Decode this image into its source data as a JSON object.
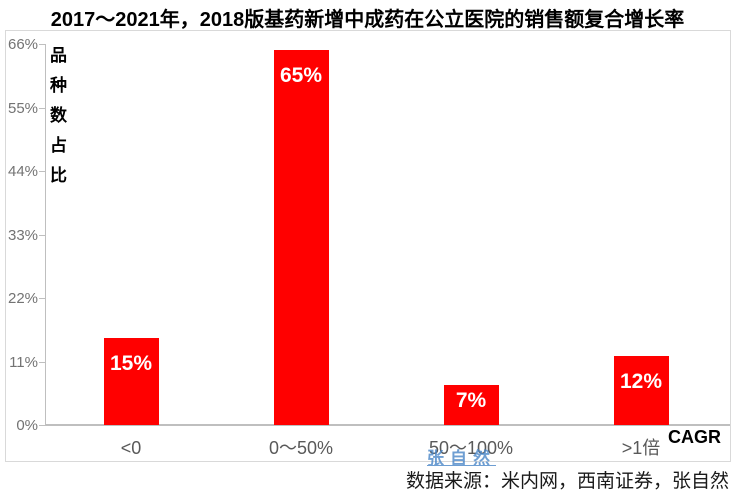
{
  "title": "2017～2021年，2018版基药新增中成药在公立医院的销售额复合增长率",
  "chart_data": {
    "type": "bar",
    "categories": [
      "<0",
      "0～50%",
      "50～100%",
      ">1倍"
    ],
    "values": [
      15,
      65,
      7,
      12
    ],
    "bar_labels": [
      "15%",
      "65%",
      "7%",
      "12%"
    ],
    "title": "2017～2021年，2018版基药新增中成药在公立医院的销售额复合增长率",
    "xlabel": "CAGR",
    "ylabel": "品种数占比",
    "ylim": [
      0,
      66
    ],
    "yticks": [
      66,
      55,
      44,
      33,
      22,
      11,
      0
    ],
    "ytick_labels": [
      "66%",
      "55%",
      "44%",
      "33%",
      "22%",
      "11%",
      "0%"
    ],
    "grid": false,
    "legend": "none",
    "bar_color": "#ff0000",
    "bar_label_color": "#ffffff",
    "axis_color": "#bfbfbf"
  },
  "watermark": {
    "text": "张自然",
    "color": "#4a86c8"
  },
  "footer": {
    "source_text": "数据来源：米内网，西南证券，张自然"
  }
}
